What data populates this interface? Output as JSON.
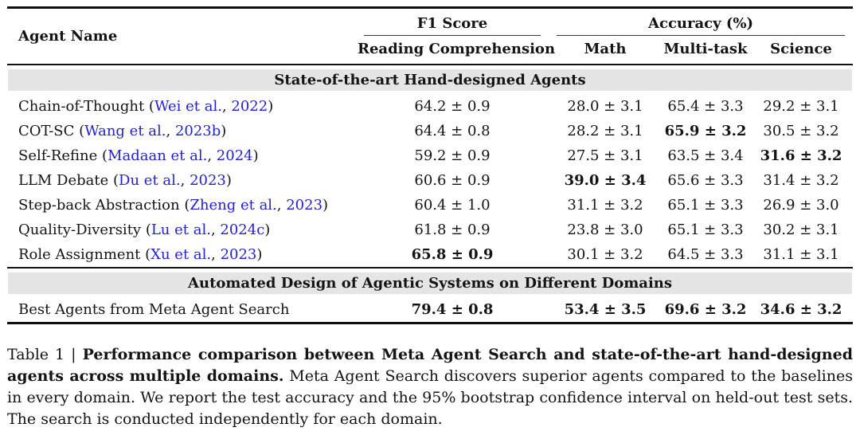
{
  "colors": {
    "citation_blue": "#2323cc",
    "section_band_gray": "#e5e5e5",
    "rule_black": "#111111"
  },
  "table": {
    "headers": {
      "agent": "Agent Name",
      "f1_group": "F1 Score",
      "accuracy_group": "Accuracy (%)",
      "reading_comprehension": "Reading Comprehension",
      "math": "Math",
      "multi_task": "Multi-task",
      "science": "Science"
    },
    "sections": [
      {
        "title": "State-of-the-art Hand-designed Agents",
        "rows": [
          {
            "agent": "Chain-of-Thought",
            "cite": {
              "author": "Wei et al.",
              "year": "2022"
            },
            "cells": [
              {
                "text": "64.2 ± 0.9",
                "bold": false
              },
              {
                "text": "28.0 ± 3.1",
                "bold": false
              },
              {
                "text": "65.4 ± 3.3",
                "bold": false
              },
              {
                "text": "29.2 ± 3.1",
                "bold": false
              }
            ]
          },
          {
            "agent": "COT-SC",
            "cite": {
              "author": "Wang et al.",
              "year": "2023b"
            },
            "cells": [
              {
                "text": "64.4 ± 0.8",
                "bold": false
              },
              {
                "text": "28.2 ± 3.1",
                "bold": false
              },
              {
                "text": "65.9 ± 3.2",
                "bold": true
              },
              {
                "text": "30.5 ± 3.2",
                "bold": false
              }
            ]
          },
          {
            "agent": "Self-Refine",
            "cite": {
              "author": "Madaan et al.",
              "year": "2024"
            },
            "cells": [
              {
                "text": "59.2 ± 0.9",
                "bold": false
              },
              {
                "text": "27.5 ± 3.1",
                "bold": false
              },
              {
                "text": "63.5 ± 3.4",
                "bold": false
              },
              {
                "text": "31.6 ± 3.2",
                "bold": true
              }
            ]
          },
          {
            "agent": "LLM Debate",
            "cite": {
              "author": "Du et al.",
              "year": "2023"
            },
            "cells": [
              {
                "text": "60.6 ± 0.9",
                "bold": false
              },
              {
                "text": "39.0 ± 3.4",
                "bold": true
              },
              {
                "text": "65.6 ± 3.3",
                "bold": false
              },
              {
                "text": "31.4 ± 3.2",
                "bold": false
              }
            ]
          },
          {
            "agent": "Step-back Abstraction",
            "cite": {
              "author": "Zheng et al.",
              "year": "2023"
            },
            "cells": [
              {
                "text": "60.4 ± 1.0",
                "bold": false
              },
              {
                "text": "31.1 ± 3.2",
                "bold": false
              },
              {
                "text": "65.1 ± 3.3",
                "bold": false
              },
              {
                "text": "26.9 ± 3.0",
                "bold": false
              }
            ]
          },
          {
            "agent": "Quality-Diversity",
            "cite": {
              "author": "Lu et al.",
              "year": "2024c"
            },
            "cells": [
              {
                "text": "61.8 ± 0.9",
                "bold": false
              },
              {
                "text": "23.8 ± 3.0",
                "bold": false
              },
              {
                "text": "65.1 ± 3.3",
                "bold": false
              },
              {
                "text": "30.2 ± 3.1",
                "bold": false
              }
            ]
          },
          {
            "agent": "Role Assignment",
            "cite": {
              "author": "Xu et al.",
              "year": "2023"
            },
            "cells": [
              {
                "text": "65.8 ± 0.9",
                "bold": true
              },
              {
                "text": "30.1 ± 3.2",
                "bold": false
              },
              {
                "text": "64.5 ± 3.3",
                "bold": false
              },
              {
                "text": "31.1 ± 3.1",
                "bold": false
              }
            ]
          }
        ]
      },
      {
        "title": "Automated Design of Agentic Systems on Different Domains",
        "rows": [
          {
            "agent": "Best Agents from Meta Agent Search",
            "cite": null,
            "cells": [
              {
                "text": "79.4 ± 0.8",
                "bold": true
              },
              {
                "text": "53.4 ± 3.5",
                "bold": true
              },
              {
                "text": "69.6 ± 3.2",
                "bold": true
              },
              {
                "text": "34.6 ± 3.2",
                "bold": true
              }
            ]
          }
        ]
      }
    ]
  },
  "caption": {
    "label": "Table 1 | ",
    "bold_title": "Performance comparison between Meta Agent Search and state-of-the-art hand-designed agents across multiple domains.",
    "body": " Meta Agent Search discovers superior agents compared to the baselines in every domain. We report the test accuracy and the 95% bootstrap confidence interval on held-out test sets. The search is conducted independently for each domain."
  }
}
